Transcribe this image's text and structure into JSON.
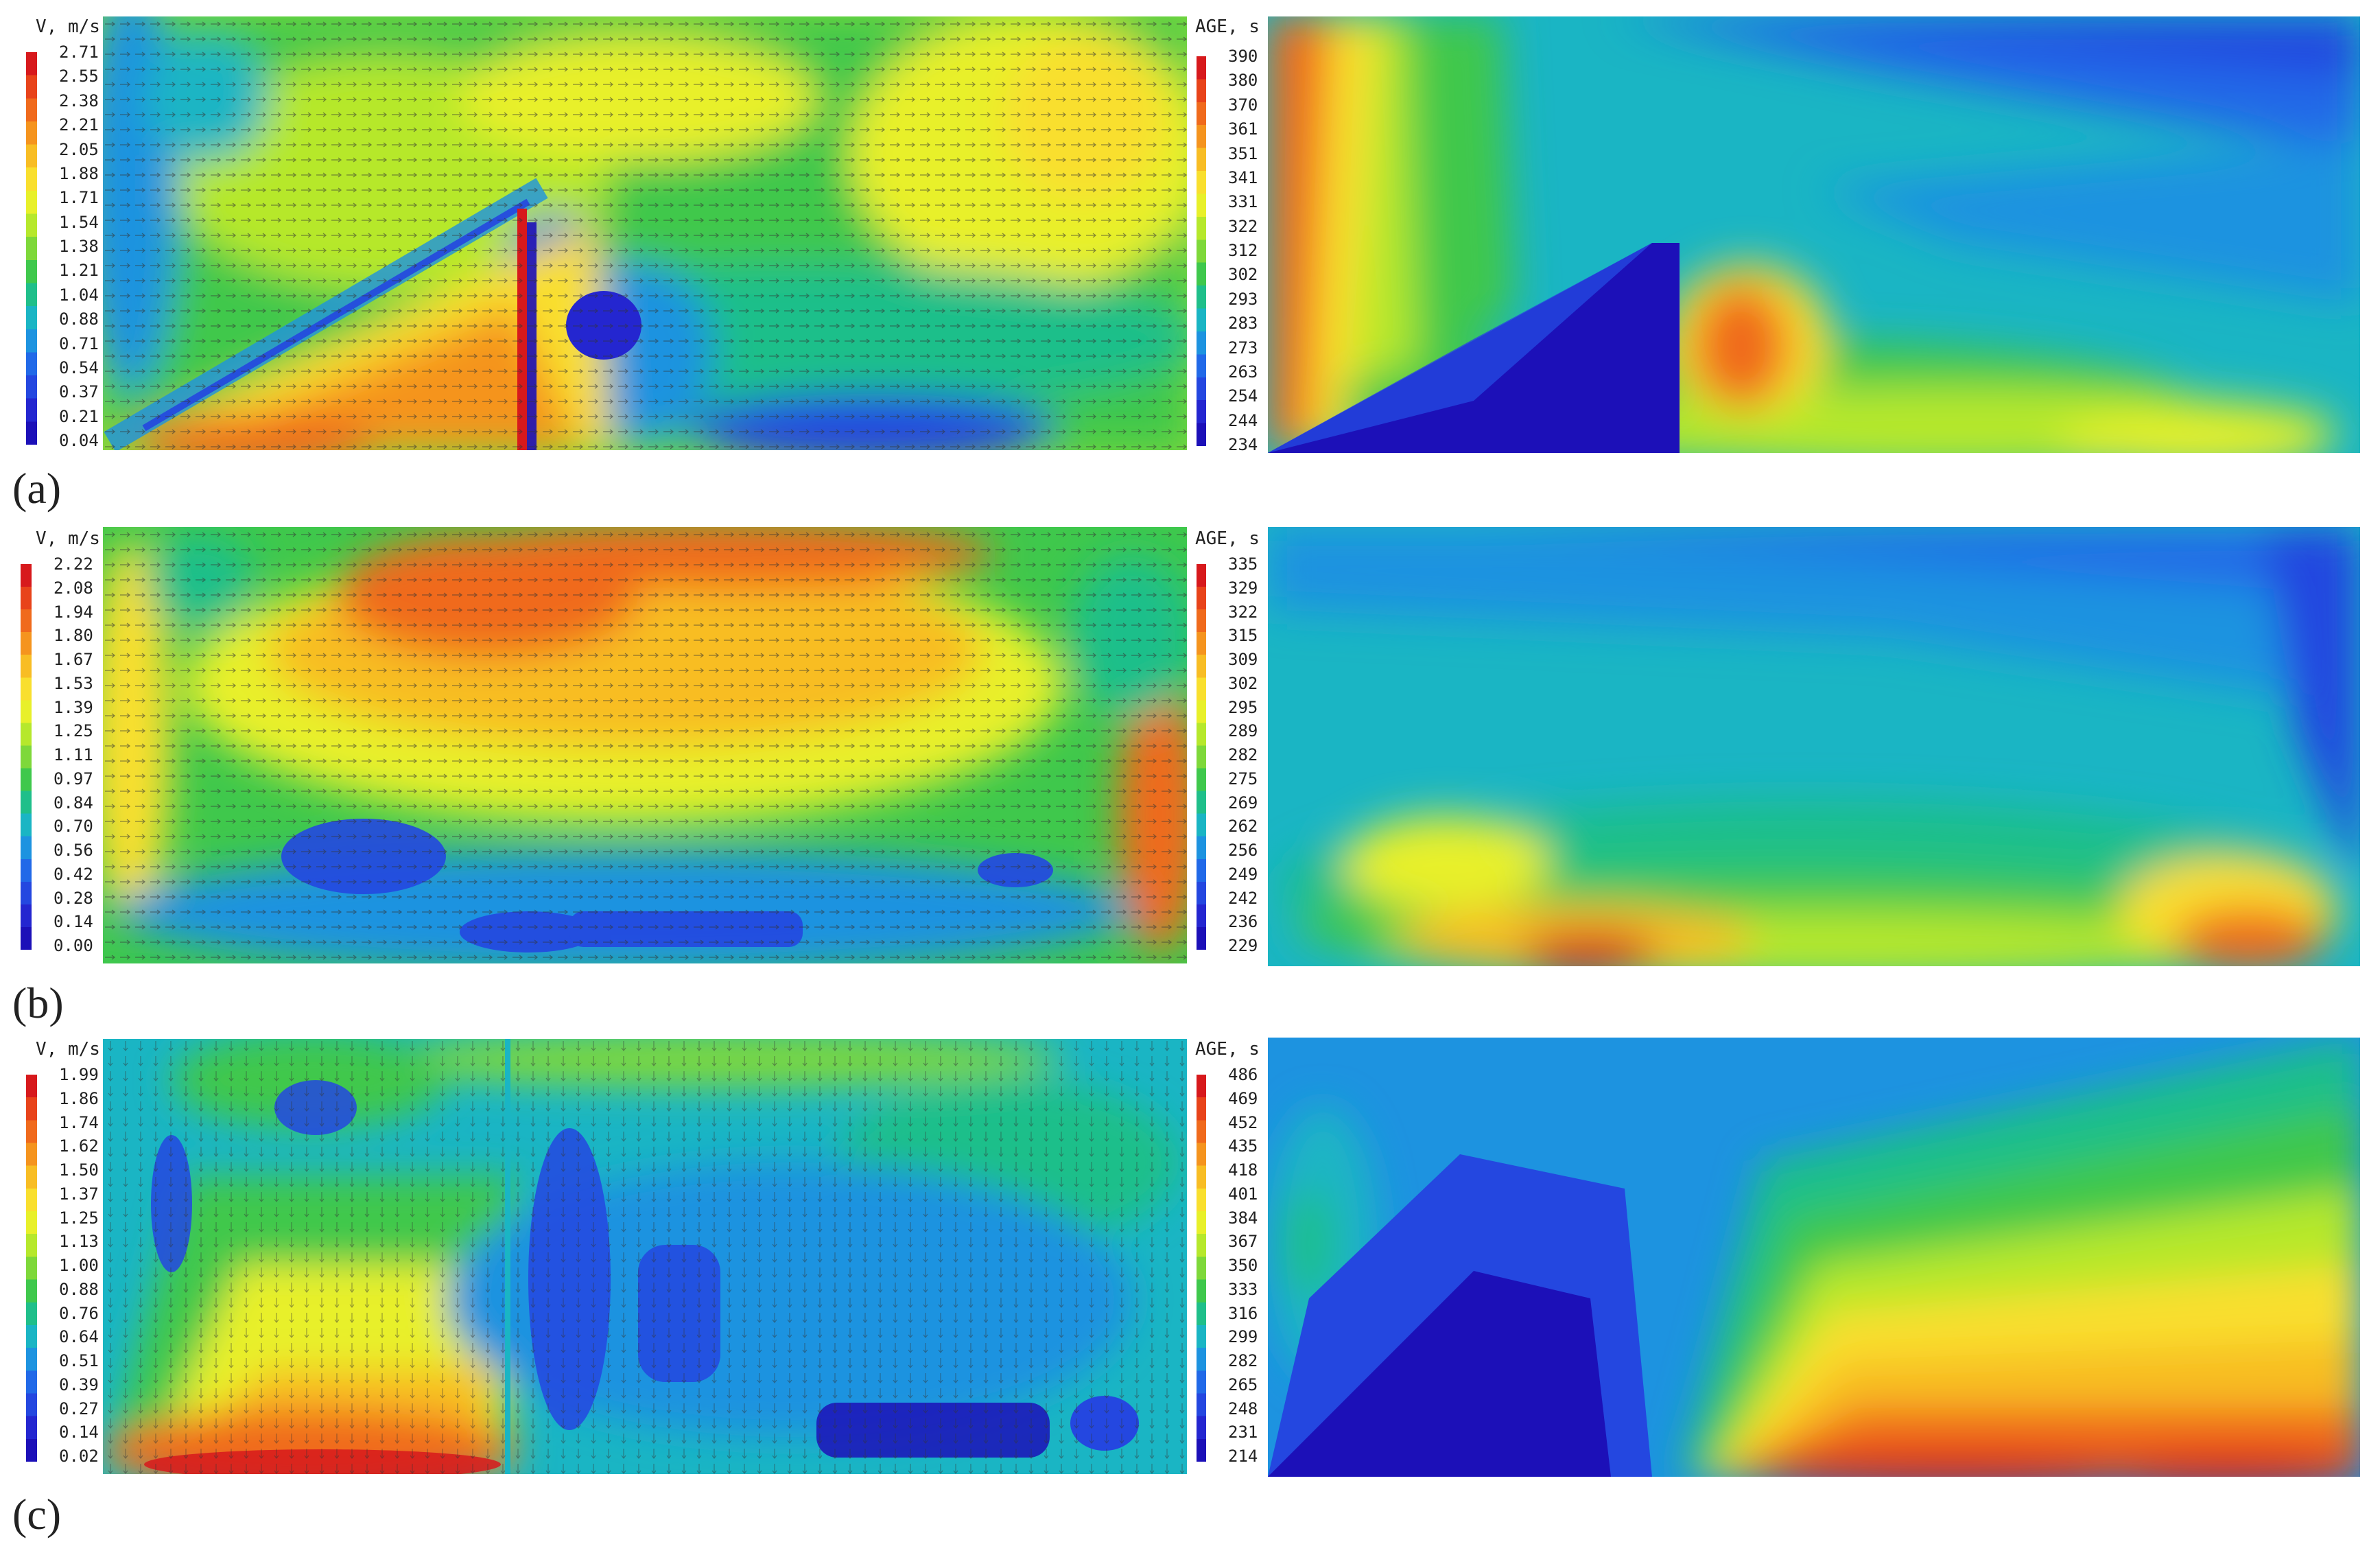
{
  "rows": [
    {
      "label": "(a)",
      "velocity": {
        "title": "V, m/s",
        "ticks": [
          "2.71",
          "2.55",
          "2.38",
          "2.21",
          "2.05",
          "1.88",
          "1.71",
          "1.54",
          "1.38",
          "1.21",
          "1.04",
          "0.88",
          "0.71",
          "0.54",
          "0.37",
          "0.21",
          "0.04"
        ]
      },
      "age": {
        "title": "AGE, s",
        "ticks": [
          "390",
          "380",
          "370",
          "361",
          "351",
          "341",
          "331",
          "322",
          "312",
          "302",
          "293",
          "283",
          "273",
          "263",
          "254",
          "244",
          "234"
        ]
      }
    },
    {
      "label": "(b)",
      "velocity": {
        "title": "V, m/s",
        "ticks": [
          "2.22",
          "2.08",
          "1.94",
          "1.80",
          "1.67",
          "1.53",
          "1.39",
          "1.25",
          "1.11",
          "0.97",
          "0.84",
          "0.70",
          "0.56",
          "0.42",
          "0.28",
          "0.14",
          "0.00"
        ]
      },
      "age": {
        "title": "AGE, s",
        "ticks": [
          "335",
          "329",
          "322",
          "315",
          "309",
          "302",
          "295",
          "289",
          "282",
          "275",
          "269",
          "262",
          "256",
          "249",
          "242",
          "236",
          "229"
        ]
      }
    },
    {
      "label": "(c)",
      "velocity": {
        "title": "V, m/s",
        "ticks": [
          "1.99",
          "1.86",
          "1.74",
          "1.62",
          "1.50",
          "1.37",
          "1.25",
          "1.13",
          "1.00",
          "0.88",
          "0.76",
          "0.64",
          "0.51",
          "0.39",
          "0.27",
          "0.14",
          "0.02"
        ]
      },
      "age": {
        "title": "AGE, s",
        "ticks": [
          "486",
          "469",
          "452",
          "435",
          "418",
          "401",
          "384",
          "367",
          "350",
          "333",
          "316",
          "299",
          "282",
          "265",
          "248",
          "231",
          "214"
        ]
      }
    }
  ],
  "colormap": [
    "#d7191c",
    "#e8431a",
    "#f06a1c",
    "#f5941e",
    "#f8bd24",
    "#f9df2e",
    "#e8f02a",
    "#b6e82c",
    "#7ed83a",
    "#3fc84c",
    "#1fbf8a",
    "#1ab5c4",
    "#1d93e0",
    "#2169e8",
    "#2447e0",
    "#2426d0",
    "#1c10b8"
  ]
}
